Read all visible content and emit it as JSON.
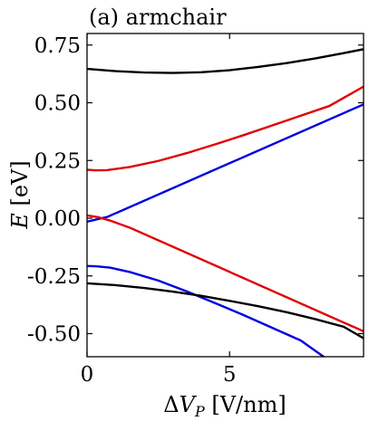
{
  "chart_data": {
    "type": "line",
    "title": "(a) armchair",
    "xlabel": "ΔV_P [V/nm]",
    "ylabel": "E [eV]",
    "xlim": [
      0,
      9.7
    ],
    "ylim": [
      -0.6,
      0.8
    ],
    "xticks": [
      0,
      5
    ],
    "xtick_labels": [
      "0",
      "5"
    ],
    "yticks": [
      0.75,
      0.5,
      0.25,
      0.0,
      -0.25,
      -0.5
    ],
    "ytick_labels": [
      "0.75",
      "0.50",
      "0.25",
      "0.00",
      "-0.25",
      "-0.50"
    ],
    "grid": false,
    "series": [
      {
        "color": "#000000",
        "x": [
          0,
          1,
          2,
          3,
          4,
          5,
          6,
          7,
          8,
          9,
          9.7
        ],
        "y": [
          0.647,
          0.637,
          0.631,
          0.629,
          0.632,
          0.641,
          0.655,
          0.672,
          0.692,
          0.715,
          0.732
        ]
      },
      {
        "color": "#e00000",
        "x": [
          0,
          0.3,
          0.7,
          1.5,
          2.5,
          3.5,
          4.5,
          5.5,
          6.5,
          7.5,
          8.5,
          9.7
        ],
        "y": [
          0.21,
          0.207,
          0.208,
          0.222,
          0.248,
          0.282,
          0.32,
          0.36,
          0.402,
          0.444,
          0.486,
          0.57
        ]
      },
      {
        "color": "#0000e0",
        "x": [
          0,
          0.7,
          9.7
        ],
        "y": [
          -0.015,
          0.005,
          0.493
        ]
      },
      {
        "color": "#e00000",
        "x": [
          0,
          0.4,
          0.8,
          1.5,
          9.7
        ],
        "y": [
          0.012,
          0.004,
          -0.01,
          -0.041,
          -0.49
        ]
      },
      {
        "color": "#0000e0",
        "x": [
          0,
          0.3,
          0.8,
          1.5,
          2.5,
          3.5,
          4.5,
          5.5,
          6.5,
          7.5,
          8.3
        ],
        "y": [
          -0.207,
          -0.208,
          -0.214,
          -0.233,
          -0.27,
          -0.317,
          -0.368,
          -0.42,
          -0.475,
          -0.53,
          -0.6
        ]
      },
      {
        "color": "#000000",
        "x": [
          0,
          1,
          2,
          3,
          4,
          5,
          6,
          7,
          8,
          9,
          9.7
        ],
        "y": [
          -0.282,
          -0.29,
          -0.302,
          -0.318,
          -0.336,
          -0.358,
          -0.381,
          -0.407,
          -0.437,
          -0.47,
          -0.52
        ]
      }
    ]
  }
}
